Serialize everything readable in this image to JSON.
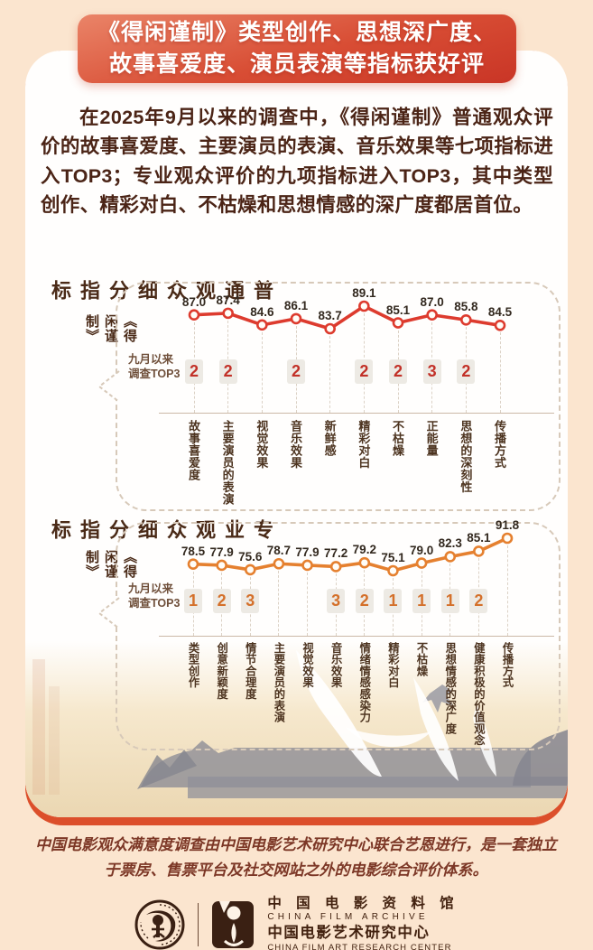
{
  "banner": {
    "line1": "《得闲谨制》类型创作、思想深广度、",
    "line2": "故事喜爱度、演员表演等指标获好评"
  },
  "intro": "在2025年9月以来的调查中，《得闲谨制》普通观众评价的故事喜爱度、主要演员的表演、音乐效果等七项指标进入TOP3；专业观众评价的九项指标进入TOP3，其中类型创作、精彩对白、不枯燥和思想情感的深广度都居首位。",
  "chart_data": [
    {
      "type": "line",
      "title": "普通观众细分指标",
      "subtitle": "《得闲谨制》",
      "callout": [
        "九月以来",
        "调查TOP3"
      ],
      "categories": [
        "故事喜爱度",
        "主要演员的表演",
        "视觉效果",
        "音乐效果",
        "新鲜感",
        "精彩对白",
        "不枯燥",
        "正能量",
        "思想的深刻性",
        "传播方式"
      ],
      "values": [
        87.0,
        87.4,
        84.6,
        86.1,
        83.7,
        89.1,
        85.1,
        87.0,
        85.8,
        84.5
      ],
      "top3": [
        "2",
        "2",
        "",
        "2",
        "",
        "2",
        "2",
        "3",
        "2",
        ""
      ],
      "ylim": [
        83.7,
        89.1
      ],
      "line_color": "#dd3b2e",
      "badge_color": "#c23128",
      "legend": "none",
      "grid": "dashed-vertical"
    },
    {
      "type": "line",
      "title": "专业观众细分指标",
      "subtitle": "《得闲谨制》",
      "callout": [
        "九月以来",
        "调查TOP3"
      ],
      "categories": [
        "类型创作",
        "创意新颖度",
        "情节合理度",
        "主要演员的表演",
        "视觉效果",
        "音乐效果",
        "情绪情感感染力",
        "精彩对白",
        "不枯燥",
        "思想情感的深广度",
        "健康积极的价值观念",
        "传播方式"
      ],
      "values": [
        78.5,
        77.9,
        75.6,
        78.7,
        77.9,
        77.2,
        79.2,
        75.1,
        79.0,
        82.3,
        85.1,
        91.8
      ],
      "top3": [
        "1",
        "2",
        "3",
        "",
        "",
        "3",
        "2",
        "1",
        "1",
        "1",
        "2",
        ""
      ],
      "ylim": [
        75.1,
        91.8
      ],
      "line_color": "#e5802f",
      "badge_color": "#d4702a",
      "legend": "none",
      "grid": "dashed-vertical"
    }
  ],
  "footer": "中国电影观众满意度调查由中国电影艺术研究中心联合艺恩进行，是一套独立于票房、售票平台及社交网站之外的电影综合评价体系。",
  "logos": {
    "cn1": "中 国 电 影 资 料 馆",
    "en1": "CHINA FILM ARCHIVE",
    "cn2": "中国电影艺术研究中心",
    "en2": "CHINA FILM ART RESEARCH CENTER"
  },
  "colors": {
    "page_bg": "#fbe5cf",
    "banner_red": "#d84d34",
    "card_bg": "#fffefd",
    "card_base": "#dc4f2b",
    "text_brown": "#4b2416",
    "footer_red": "#7c3726"
  }
}
